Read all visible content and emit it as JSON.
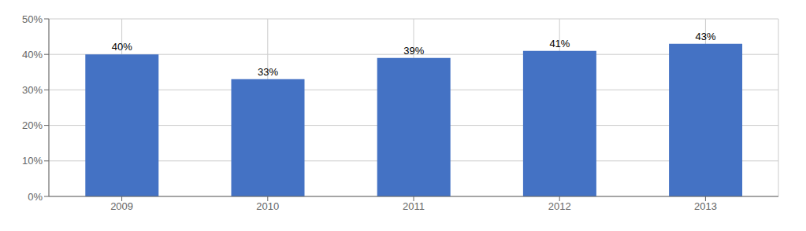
{
  "chart_data": {
    "type": "bar",
    "categories": [
      "2009",
      "2010",
      "2011",
      "2012",
      "2013"
    ],
    "values": [
      40,
      33,
      39,
      41,
      43
    ],
    "value_labels": [
      "40%",
      "33%",
      "39%",
      "41%",
      "43%"
    ],
    "data_labels": true,
    "color": "#4472C4",
    "ylim": [
      0,
      50
    ],
    "yticks": [
      {
        "value": 0,
        "label": "0%"
      },
      {
        "value": 10,
        "label": "10%"
      },
      {
        "value": 20,
        "label": "20%"
      },
      {
        "value": 30,
        "label": "30%"
      },
      {
        "value": 40,
        "label": "40%"
      },
      {
        "value": 50,
        "label": "50%"
      }
    ],
    "grid": true
  }
}
